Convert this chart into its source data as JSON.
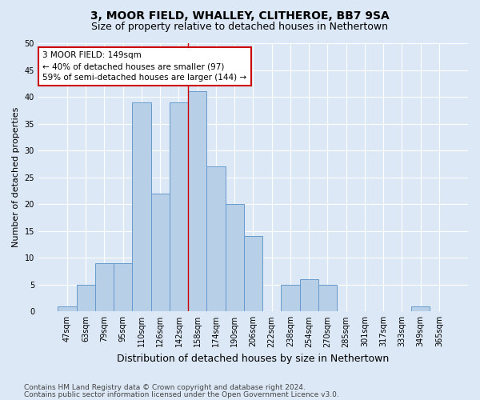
{
  "title1": "3, MOOR FIELD, WHALLEY, CLITHEROE, BB7 9SA",
  "title2": "Size of property relative to detached houses in Nethertown",
  "xlabel": "Distribution of detached houses by size in Nethertown",
  "ylabel": "Number of detached properties",
  "categories": [
    "47sqm",
    "63sqm",
    "79sqm",
    "95sqm",
    "110sqm",
    "126sqm",
    "142sqm",
    "158sqm",
    "174sqm",
    "190sqm",
    "206sqm",
    "222sqm",
    "238sqm",
    "254sqm",
    "270sqm",
    "285sqm",
    "301sqm",
    "317sqm",
    "333sqm",
    "349sqm",
    "365sqm"
  ],
  "values": [
    1,
    5,
    9,
    9,
    39,
    22,
    39,
    41,
    27,
    20,
    14,
    0,
    5,
    6,
    5,
    0,
    0,
    0,
    0,
    1,
    0
  ],
  "bar_color": "#b8cfe8",
  "bar_edge_color": "#6699cc",
  "vline_x": 7.0,
  "vline_color": "#cc0000",
  "annotation_text": "3 MOOR FIELD: 149sqm\n← 40% of detached houses are smaller (97)\n59% of semi-detached houses are larger (144) →",
  "annotation_box_facecolor": "#ffffff",
  "annotation_box_edgecolor": "#cc0000",
  "ylim": [
    0,
    50
  ],
  "yticks": [
    0,
    5,
    10,
    15,
    20,
    25,
    30,
    35,
    40,
    45,
    50
  ],
  "footer1": "Contains HM Land Registry data © Crown copyright and database right 2024.",
  "footer2": "Contains public sector information licensed under the Open Government Licence v3.0.",
  "background_color": "#dce8f5",
  "plot_background": "#dce8f5",
  "grid_color": "#ffffff",
  "title1_fontsize": 10,
  "title2_fontsize": 9,
  "xlabel_fontsize": 9,
  "ylabel_fontsize": 8,
  "tick_fontsize": 7,
  "annotation_fontsize": 7.5,
  "footer_fontsize": 6.5
}
